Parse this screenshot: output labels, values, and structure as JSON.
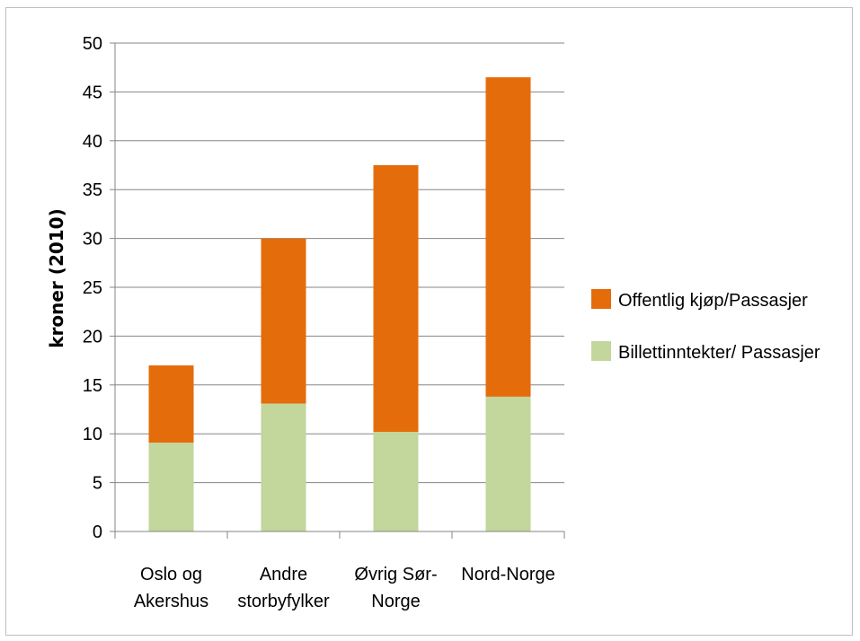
{
  "chart_data": {
    "type": "bar",
    "stacked": true,
    "ylabel": "kroner (2010)",
    "xlabel": "",
    "ylim": [
      0,
      50
    ],
    "yticks": [
      0,
      5,
      10,
      15,
      20,
      25,
      30,
      35,
      40,
      45,
      50
    ],
    "grid": true,
    "legend_position": "right",
    "categories": [
      [
        "Oslo og",
        "Akershus"
      ],
      [
        "Andre",
        "storbyfylker"
      ],
      [
        "Øvrig Sør-",
        "Norge"
      ],
      [
        "Nord-Norge"
      ]
    ],
    "series": [
      {
        "name": "Billettinntekter/ Passasjer",
        "color": "#c3d69b",
        "values": [
          9.1,
          13.1,
          10.2,
          13.8
        ]
      },
      {
        "name": "Offentlig kjøp/Passasjer",
        "color": "#e46c0a",
        "values": [
          7.9,
          16.9,
          27.3,
          32.7
        ]
      }
    ],
    "legend_order": [
      1,
      0
    ]
  }
}
